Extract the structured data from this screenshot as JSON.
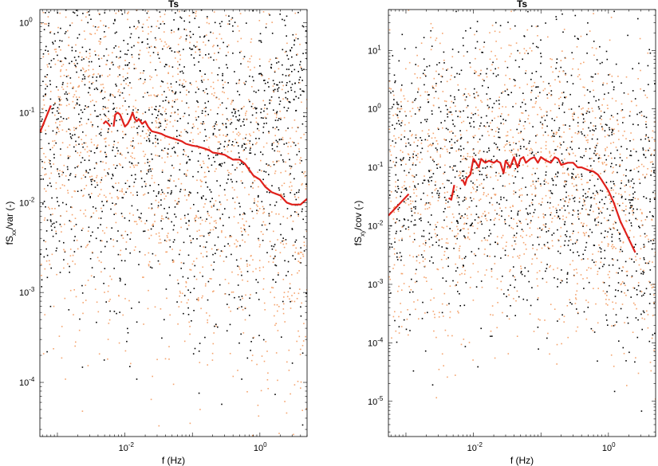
{
  "figure": {
    "background": "#ffffff",
    "colors": {
      "scatter_dark": "#000000",
      "scatter_light": "#f4a46e",
      "mean_line": "#e0201b"
    }
  },
  "chart_data": [
    {
      "type": "scatter",
      "title": "Ts",
      "xlabel": "f (Hz)",
      "ylabel": {
        "base": "fS",
        "sub": "xx",
        "rest": "/var (-)"
      },
      "xscale": "log",
      "yscale": "log",
      "xlim": [
        0.00055,
        5.0
      ],
      "ylim": [
        2.5e-05,
        1.4
      ],
      "xticks": [
        {
          "value": 0.01,
          "base": "10",
          "exp": "-2"
        },
        {
          "value": 1,
          "base": "10",
          "exp": "0"
        }
      ],
      "yticks": [
        {
          "value": 1,
          "base": "10",
          "exp": "0"
        },
        {
          "value": 0.1,
          "base": "10",
          "exp": "-1"
        },
        {
          "value": 0.01,
          "base": "10",
          "exp": "-2"
        },
        {
          "value": 0.001,
          "base": "10",
          "exp": "-3"
        },
        {
          "value": 0.0001,
          "base": "10",
          "exp": "-4"
        }
      ],
      "grid": false,
      "series": [
        {
          "kind": "scatter",
          "color": "scatter_dark",
          "seed": 11,
          "band": [
            [
              0.00055,
              0.1
            ],
            [
              0.03,
              0.08
            ],
            [
              0.5,
              0.035
            ],
            [
              5.0,
              0.012
            ]
          ],
          "spread": 1.05,
          "count": 1500,
          "tail_up": true
        },
        {
          "kind": "scatter",
          "color": "scatter_light",
          "seed": 23,
          "band": [
            [
              0.00055,
              0.08
            ],
            [
              0.03,
              0.06
            ],
            [
              0.5,
              0.025
            ],
            [
              5.0,
              0.005
            ]
          ],
          "spread": 1.15,
          "count": 1500,
          "tail_up": false
        },
        {
          "kind": "line",
          "color": "mean_line",
          "segments": [
            {
              "x": [
                0.00055,
                0.0008
              ],
              "y": [
                0.06,
                0.12
              ]
            },
            {
              "x": [
                0.0048,
                0.0052,
                0.0057,
                0.0061
              ],
              "y": [
                0.075,
                0.08,
                0.075,
                0.07
              ]
            },
            {
              "x": [
                0.0068,
                0.0072,
                0.0078,
                0.0085,
                0.009,
                0.01,
                0.011,
                0.012,
                0.013,
                0.014,
                0.015,
                0.016,
                0.018,
                0.02,
                0.022,
                0.025,
                0.03,
                0.035,
                0.04,
                0.05,
                0.06,
                0.07,
                0.08,
                0.1,
                0.12,
                0.15,
                0.18,
                0.2,
                0.25,
                0.3,
                0.4,
                0.5,
                0.6,
                0.7,
                0.8,
                1.0,
                1.2,
                1.5,
                2.0,
                2.5,
                3.0,
                4.0,
                5.0
              ],
              "y": [
                0.07,
                0.095,
                0.1,
                0.095,
                0.085,
                0.07,
                0.075,
                0.085,
                0.1,
                0.085,
                0.08,
                0.085,
                0.075,
                0.08,
                0.07,
                0.062,
                0.06,
                0.058,
                0.055,
                0.052,
                0.05,
                0.048,
                0.045,
                0.043,
                0.042,
                0.04,
                0.038,
                0.036,
                0.035,
                0.034,
                0.03,
                0.03,
                0.027,
                0.023,
                0.02,
                0.018,
                0.015,
                0.013,
                0.012,
                0.01,
                0.0095,
                0.0095,
                0.011
              ]
            }
          ]
        }
      ]
    },
    {
      "type": "scatter",
      "title": "Ts",
      "xlabel": "f (Hz)",
      "ylabel": {
        "base": "fS",
        "sub": "xy",
        "rest": "/cov (-)"
      },
      "xscale": "log",
      "yscale": "log",
      "xlim": [
        0.00055,
        5.0
      ],
      "ylim": [
        2.5e-06,
        50
      ],
      "xticks": [
        {
          "value": 0.01,
          "base": "10",
          "exp": "-2"
        },
        {
          "value": 1,
          "base": "10",
          "exp": "0"
        }
      ],
      "yticks": [
        {
          "value": 10,
          "base": "10",
          "exp": "1"
        },
        {
          "value": 1,
          "base": "10",
          "exp": "0"
        },
        {
          "value": 0.1,
          "base": "10",
          "exp": "-1"
        },
        {
          "value": 0.01,
          "base": "10",
          "exp": "-2"
        },
        {
          "value": 0.001,
          "base": "10",
          "exp": "-3"
        },
        {
          "value": 0.0001,
          "base": "10",
          "exp": "-4"
        },
        {
          "value": 1e-05,
          "base": "10",
          "exp": "-5"
        }
      ],
      "grid": false,
      "series": [
        {
          "kind": "scatter",
          "color": "scatter_dark",
          "seed": 37,
          "band": [
            [
              0.00055,
              0.08
            ],
            [
              0.05,
              0.12
            ],
            [
              0.5,
              0.1
            ],
            [
              5.0,
              0.02
            ]
          ],
          "spread": 1.3,
          "count": 1300,
          "tail_up": false
        },
        {
          "kind": "scatter",
          "color": "scatter_light",
          "seed": 53,
          "band": [
            [
              0.00055,
              0.06
            ],
            [
              0.05,
              0.09
            ],
            [
              0.5,
              0.07
            ],
            [
              5.0,
              0.008
            ]
          ],
          "spread": 1.35,
          "count": 1300,
          "tail_up": false
        },
        {
          "kind": "line",
          "color": "mean_line",
          "segments": [
            {
              "x": [
                0.00055,
                0.0011
              ],
              "y": [
                0.015,
                0.035
              ]
            },
            {
              "x": [
                0.0043,
                0.0047,
                0.0052
              ],
              "y": [
                0.03,
                0.028,
                0.05
              ]
            },
            {
              "x": [
                0.0065,
                0.007,
                0.0075,
                0.008,
                0.009,
                0.01,
                0.011,
                0.012,
                0.013,
                0.015,
                0.017,
                0.02,
                0.022,
                0.025,
                0.028,
                0.03,
                0.035,
                0.04,
                0.045,
                0.05,
                0.055,
                0.06,
                0.07,
                0.08,
                0.09,
                0.1,
                0.12,
                0.14,
                0.16,
                0.18,
                0.2,
                0.25,
                0.3,
                0.35,
                0.4,
                0.5,
                0.6,
                0.7,
                0.8,
                1.0,
                1.2,
                1.5,
                2.0,
                2.5
              ],
              "y": [
                0.06,
                0.06,
                0.05,
                0.065,
                0.075,
                0.14,
                0.12,
                0.1,
                0.14,
                0.12,
                0.13,
                0.12,
                0.13,
                0.12,
                0.08,
                0.13,
                0.1,
                0.15,
                0.1,
                0.14,
                0.15,
                0.12,
                0.14,
                0.15,
                0.12,
                0.15,
                0.13,
                0.12,
                0.15,
                0.14,
                0.11,
                0.12,
                0.12,
                0.1,
                0.1,
                0.09,
                0.085,
                0.075,
                0.06,
                0.04,
                0.025,
                0.012,
                0.006,
                0.0035
              ]
            }
          ]
        }
      ]
    }
  ]
}
